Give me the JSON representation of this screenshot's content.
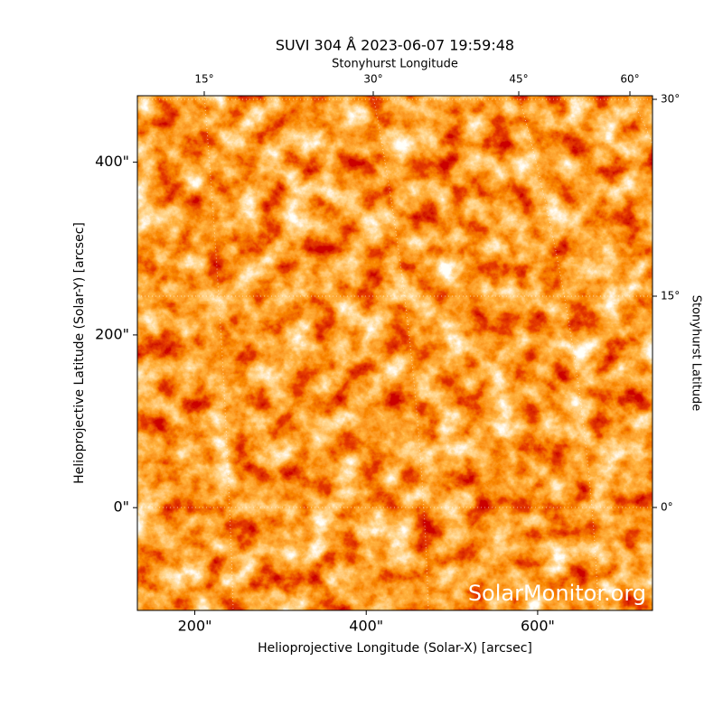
{
  "chart_data": {
    "type": "image",
    "title": "SUVI 304 Å 2023-06-07 19:59:48",
    "x_label": "Helioprojective Longitude (Solar-X) [arcsec]",
    "y_label": "Helioprojective Latitude (Solar-Y) [arcsec]",
    "top_label": "Stonyhurst Longitude",
    "right_label": "Stonyhurst Latitude",
    "watermark": "SolarMonitor.org",
    "xlim": [
      133,
      734
    ],
    "ylim": [
      -119,
      477
    ],
    "xticks": [
      {
        "value": 200,
        "label": "200\""
      },
      {
        "value": 400,
        "label": "400\""
      },
      {
        "value": 600,
        "label": "600\""
      }
    ],
    "yticks": [
      {
        "value": 0,
        "label": "0\""
      },
      {
        "value": 200,
        "label": "200\""
      },
      {
        "value": 400,
        "label": "400\""
      }
    ],
    "top_tick_labels": [
      "15°",
      "30°",
      "45°",
      "60°"
    ],
    "right_tick_labels": [
      "30°",
      "15°",
      "0°"
    ]
  }
}
